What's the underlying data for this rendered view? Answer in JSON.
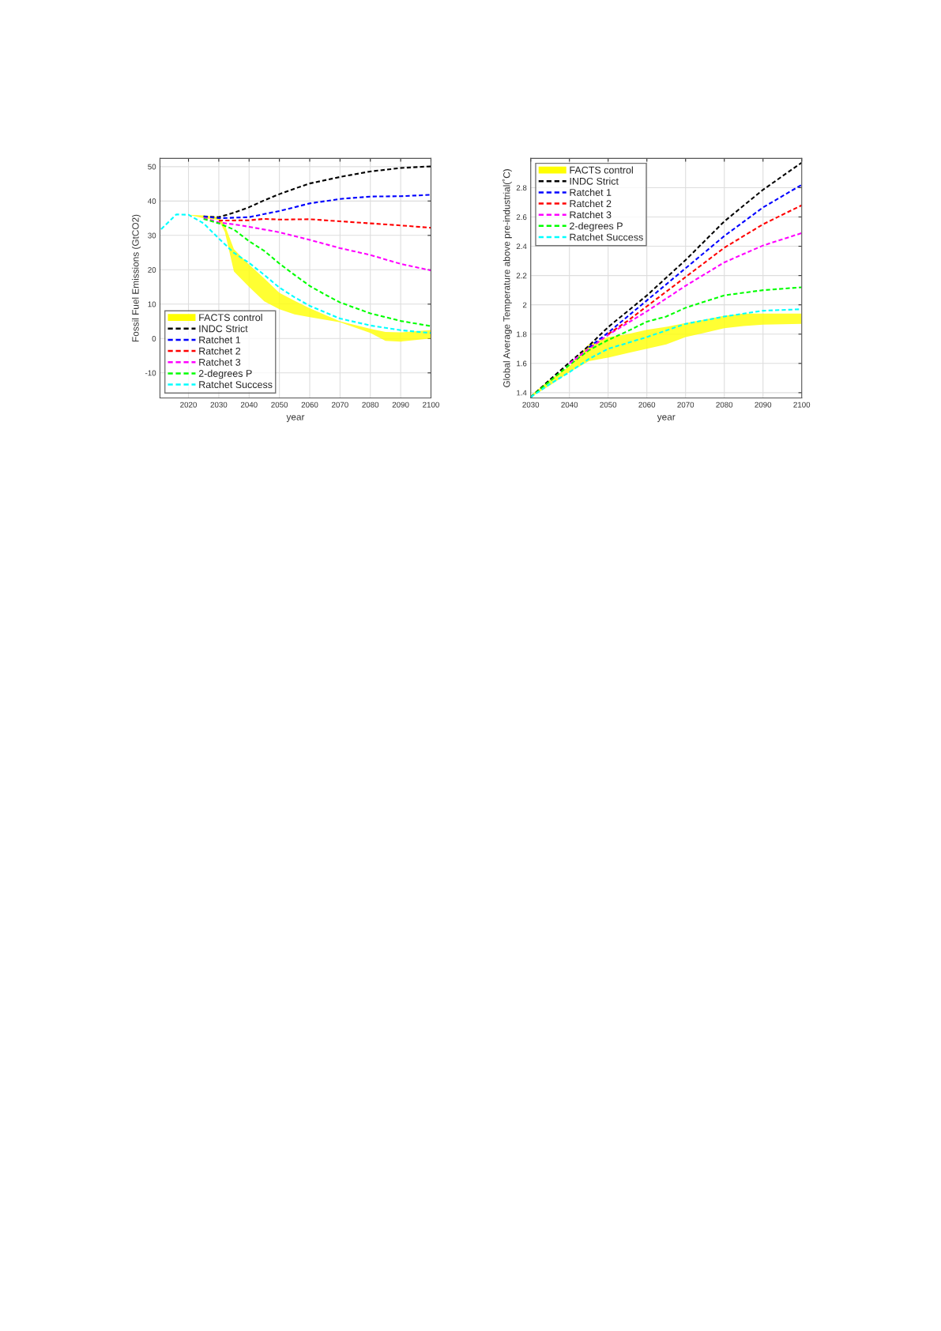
{
  "chart_data": [
    {
      "type": "line",
      "xlabel": "year",
      "ylabel": "Fossil Fuel Emissions (GtCO2)",
      "xlim": [
        2010.6,
        2100
      ],
      "ylim": [
        -17.3,
        52.4
      ],
      "xticks": [
        2020,
        2030,
        2040,
        2050,
        2060,
        2070,
        2080,
        2090,
        2100
      ],
      "yticks": [
        -10,
        0,
        10,
        20,
        30,
        40,
        50
      ],
      "grid": true,
      "legend": "bottom left",
      "line_style": "dashed",
      "series": [
        {
          "name": "FACTS control",
          "color": "#ffff00",
          "x": [
            2016,
            2020,
            2025,
            2030,
            2032,
            2035,
            2040,
            2045,
            2050,
            2055,
            2060,
            2070,
            2080,
            2085,
            2090,
            2100
          ],
          "values": [
            null,
            null,
            null,
            null,
            null,
            null,
            null,
            null,
            null,
            null,
            null,
            null,
            null,
            null,
            null,
            null
          ],
          "lower": [
            36,
            36,
            35,
            34.5,
            31,
            19.5,
            15,
            10.8,
            8.5,
            7,
            6.2,
            4.7,
            1.6,
            -0.7,
            -0.9,
            0
          ],
          "upper": [
            36,
            36,
            35.8,
            35.3,
            33,
            26,
            21.5,
            17.5,
            13.3,
            11,
            8.8,
            5,
            2.8,
            1.9,
            1.8,
            2.5
          ]
        },
        {
          "name": "INDC Strict",
          "color": "#000000",
          "x": [
            2025,
            2030,
            2035,
            2040,
            2045,
            2050,
            2055,
            2060,
            2070,
            2080,
            2090,
            2100
          ],
          "values": [
            35.5,
            35.3,
            36.6,
            38.2,
            40.2,
            42,
            43.6,
            45.1,
            47,
            48.6,
            49.6,
            50.1
          ]
        },
        {
          "name": "Ratchet 1",
          "color": "#0000ff",
          "x": [
            2025,
            2030,
            2040,
            2045,
            2050,
            2060,
            2070,
            2080,
            2090,
            2100
          ],
          "values": [
            35.5,
            35,
            35.3,
            36.2,
            37.1,
            39.3,
            40.6,
            41.3,
            41.4,
            41.8
          ]
        },
        {
          "name": "Ratchet 2",
          "color": "#ff0000",
          "x": [
            2030,
            2040,
            2045,
            2050,
            2060,
            2070,
            2080,
            2090,
            2100
          ],
          "values": [
            34.3,
            34.4,
            34.8,
            34.6,
            34.7,
            34.1,
            33.5,
            32.9,
            32.2
          ]
        },
        {
          "name": "Ratchet 3",
          "color": "#ff00ff",
          "x": [
            2025,
            2030,
            2035,
            2040,
            2050,
            2060,
            2070,
            2080,
            2090,
            2100
          ],
          "values": [
            35,
            33.8,
            33.2,
            32.5,
            30.9,
            28.7,
            26.3,
            24.3,
            21.7,
            19.8
          ]
        },
        {
          "name": "2-degrees P",
          "color": "#00ff00",
          "x": [
            2025,
            2030,
            2035,
            2040,
            2045,
            2050,
            2055,
            2060,
            2065,
            2070,
            2080,
            2090,
            2100
          ],
          "values": [
            34.8,
            33.5,
            31.7,
            28.3,
            25.5,
            21.8,
            18.5,
            15.3,
            12.8,
            10.5,
            7.3,
            5.1,
            3.6
          ]
        },
        {
          "name": "Ratchet Success",
          "color": "#00ffff",
          "x": [
            2011,
            2016,
            2020,
            2025,
            2030,
            2035,
            2040,
            2045,
            2050,
            2055,
            2060,
            2070,
            2080,
            2090,
            2100
          ],
          "values": [
            31.8,
            36.1,
            36,
            33.5,
            29.1,
            24.9,
            22,
            18.5,
            14.8,
            12,
            9.5,
            5.8,
            3.8,
            2.4,
            1.6
          ]
        }
      ]
    },
    {
      "type": "line",
      "xlabel": "year",
      "ylabel": "Global Average Temperature above pre-industrial(˚C)",
      "xlim": [
        2030,
        2100
      ],
      "ylim": [
        1.364,
        3.0
      ],
      "xticks": [
        2030,
        2040,
        2050,
        2060,
        2070,
        2080,
        2090,
        2100
      ],
      "yticks": [
        1.4,
        1.6,
        1.8,
        2,
        2.2,
        2.4,
        2.6,
        2.8
      ],
      "grid": true,
      "legend": "top left",
      "line_style": "dashed",
      "series": [
        {
          "name": "FACTS control",
          "color": "#ffff00",
          "x": [
            2030,
            2035,
            2040,
            2045,
            2050,
            2055,
            2060,
            2065,
            2070,
            2075,
            2080,
            2085,
            2090,
            2100
          ],
          "values": [
            null,
            null,
            null,
            null,
            null,
            null,
            null,
            null,
            null,
            null,
            null,
            null,
            null,
            null
          ],
          "lower": [
            1.37,
            1.45,
            1.54,
            1.615,
            1.64,
            1.67,
            1.7,
            1.73,
            1.78,
            1.81,
            1.84,
            1.855,
            1.865,
            1.87
          ],
          "upper": [
            1.38,
            1.49,
            1.58,
            1.73,
            1.78,
            1.8,
            1.83,
            1.85,
            1.875,
            1.9,
            1.925,
            1.94,
            1.94,
            1.94
          ]
        },
        {
          "name": "INDC Strict",
          "color": "#000000",
          "x": [
            2030,
            2035,
            2040,
            2045,
            2050,
            2055,
            2060,
            2070,
            2080,
            2090,
            2100
          ],
          "values": [
            1.37,
            1.49,
            1.606,
            1.72,
            1.848,
            1.956,
            2.064,
            2.306,
            2.57,
            2.786,
            2.971
          ]
        },
        {
          "name": "Ratchet 1",
          "color": "#0000ff",
          "x": [
            2045,
            2050,
            2055,
            2060,
            2070,
            2080,
            2090,
            2100
          ],
          "values": [
            1.71,
            1.81,
            1.92,
            2.03,
            2.25,
            2.47,
            2.665,
            2.82
          ]
        },
        {
          "name": "Ratchet 2",
          "color": "#ff0000",
          "x": [
            2050,
            2055,
            2060,
            2070,
            2080,
            2090,
            2100
          ],
          "values": [
            1.8,
            1.89,
            1.99,
            2.19,
            2.39,
            2.55,
            2.68
          ]
        },
        {
          "name": "Ratchet 3",
          "color": "#ff00ff",
          "x": [
            2040,
            2045,
            2050,
            2055,
            2060,
            2070,
            2080,
            2090,
            2100
          ],
          "values": [
            1.6,
            1.7,
            1.795,
            1.875,
            1.956,
            2.13,
            2.29,
            2.405,
            2.49
          ]
        },
        {
          "name": "2-degrees P",
          "color": "#00ff00",
          "x": [
            2030,
            2035,
            2040,
            2045,
            2050,
            2055,
            2060,
            2065,
            2070,
            2080,
            2090,
            2100
          ],
          "values": [
            1.37,
            1.48,
            1.59,
            1.69,
            1.76,
            1.82,
            1.885,
            1.92,
            1.98,
            2.065,
            2.1,
            2.12
          ]
        },
        {
          "name": "Ratchet Success",
          "color": "#00ffff",
          "x": [
            2030,
            2035,
            2040,
            2045,
            2050,
            2055,
            2060,
            2070,
            2080,
            2090,
            2100
          ],
          "values": [
            1.37,
            1.46,
            1.54,
            1.63,
            1.7,
            1.74,
            1.78,
            1.87,
            1.92,
            1.96,
            1.97
          ]
        }
      ]
    }
  ]
}
